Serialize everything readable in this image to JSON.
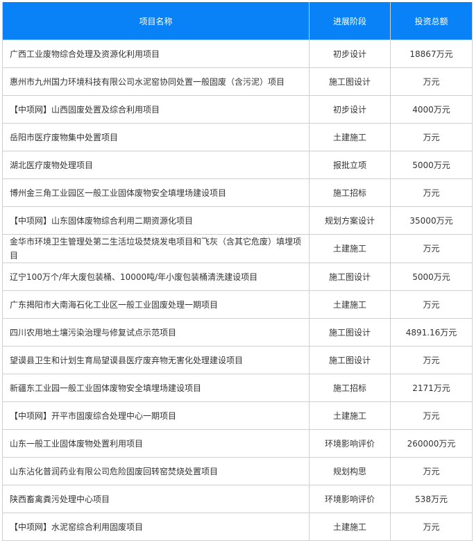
{
  "header": {
    "name": "项目名称",
    "stage": "进展阶段",
    "amount": "投资总额"
  },
  "colors": {
    "header_bg": "#0a82f7",
    "header_text": "#ffffff",
    "border": "#cfcfcf",
    "text": "#333333"
  },
  "rows": [
    {
      "name": "广西工业废物综合处理及资源化利用项目",
      "stage": "初步设计",
      "amount": "18867万元"
    },
    {
      "name": "惠州市九州国力环境科技有限公司水泥窑协同处置一般固废（含污泥）项目",
      "stage": "施工图设计",
      "amount": "万元"
    },
    {
      "name": "【中项网】山西固废处置及综合利用项目",
      "stage": "初步设计",
      "amount": "4000万元"
    },
    {
      "name": "岳阳市医疗废物集中处置项目",
      "stage": "土建施工",
      "amount": "万元"
    },
    {
      "name": "湖北医疗废物处理项目",
      "stage": "报批立项",
      "amount": "5000万元"
    },
    {
      "name": "博州金三角工业园区一般工业固体废物安全填埋场建设项目",
      "stage": "施工招标",
      "amount": "万元"
    },
    {
      "name": "【中项网】山东固体废物综合利用二期资源化项目",
      "stage": "规划方案设计",
      "amount": "35000万元"
    },
    {
      "name": "金华市环境卫生管理处第二生活垃圾焚烧发电项目和飞灰（含其它危废）填埋项目",
      "stage": "土建施工",
      "amount": "万元"
    },
    {
      "name": "辽宁100万个/年大废包装桶、10000吨/年小废包装桶清洗建设项目",
      "stage": "施工图设计",
      "amount": "5000万元"
    },
    {
      "name": "广东揭阳市大南海石化工业区一般工业固废处理一期项目",
      "stage": "土建施工",
      "amount": "万元"
    },
    {
      "name": "四川农用地土壤污染治理与修复试点示范项目",
      "stage": "施工图设计",
      "amount": "4891.16万元"
    },
    {
      "name": "望谟县卫生和计划生育局望谟县医疗废弃物无害化处理建设项目",
      "stage": "施工图设计",
      "amount": "万元"
    },
    {
      "name": "新疆东工业园一般工业固体废物安全填埋场建设项目",
      "stage": "施工招标",
      "amount": "2171万元"
    },
    {
      "name": "【中项网】开平市固废综合处理中心一期项目",
      "stage": "土建施工",
      "amount": "万元"
    },
    {
      "name": "山东一般工业固体废物处置利用项目",
      "stage": "环境影响评价",
      "amount": "260000万元"
    },
    {
      "name": "山东沾化普润药业有限公司危险固废回转窑焚烧处置项目",
      "stage": "规划构思",
      "amount": "万元"
    },
    {
      "name": "陕西畜禽粪污处理中心项目",
      "stage": "环境影响评价",
      "amount": "538万元"
    },
    {
      "name": "【中项网】水泥窑综合利用固废项目",
      "stage": "土建施工",
      "amount": "万元"
    }
  ]
}
